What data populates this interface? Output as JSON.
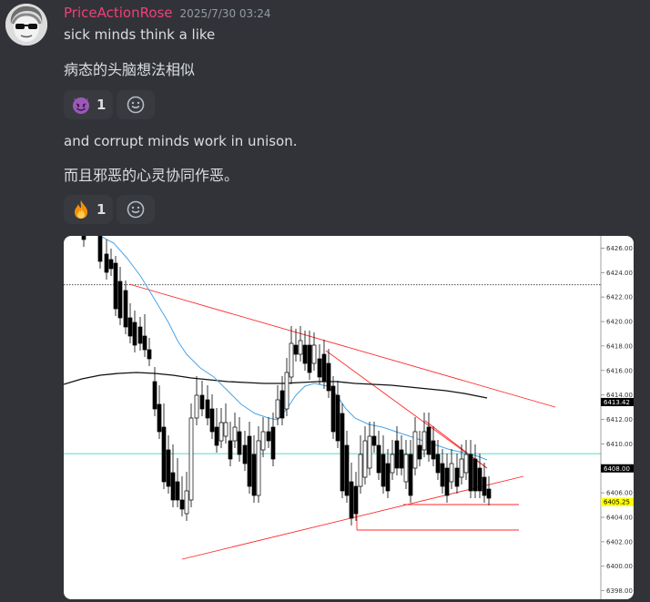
{
  "message": {
    "username": "PriceActionRose",
    "timestamp": "2025/7/30 03:24",
    "line1": "sick minds think a like",
    "line1_translation": "病态的头脑想法相似",
    "line2": "and corrupt minds work in unison.",
    "line2_translation": "而且邪恶的心灵协同作恶。"
  },
  "reactions_1": [
    {
      "emoji": "smiling-imp",
      "count": "1"
    }
  ],
  "reactions_2": [
    {
      "emoji": "fire",
      "count": "1"
    }
  ],
  "chart_data": {
    "type": "candlestick",
    "y_ticks": [
      "6426.00",
      "6424.00",
      "6422.00",
      "6420.00",
      "6418.00",
      "6416.00",
      "6414.00",
      "6412.00",
      "6410.00",
      "6408.00",
      "6406.00",
      "6404.00",
      "6402.00",
      "6400.00",
      "6398.00"
    ],
    "ylim": [
      6397.3,
      6427.0
    ],
    "price_tags": [
      {
        "value": 6413.42,
        "label": "6413.42",
        "bg": "#000000",
        "fg": "#ffffff"
      },
      {
        "value": 6408.0,
        "label": "6408.00",
        "bg": "#000000",
        "fg": "#ffffff"
      },
      {
        "value": 6405.25,
        "label": "6405.25",
        "bg": "#ffff00",
        "fg": "#000000"
      }
    ],
    "horizontal_levels": [
      {
        "value": 6423.0,
        "style": "dotted",
        "color": "#333333"
      },
      {
        "value": 6409.2,
        "style": "solid",
        "color": "#5bd6c8"
      }
    ],
    "colors": {
      "bull": "#ffffff",
      "bear": "#000000",
      "trendline": "#ff2a2a",
      "ma_fast": "#4aa3e8",
      "ma_slow": "#111111"
    }
  }
}
